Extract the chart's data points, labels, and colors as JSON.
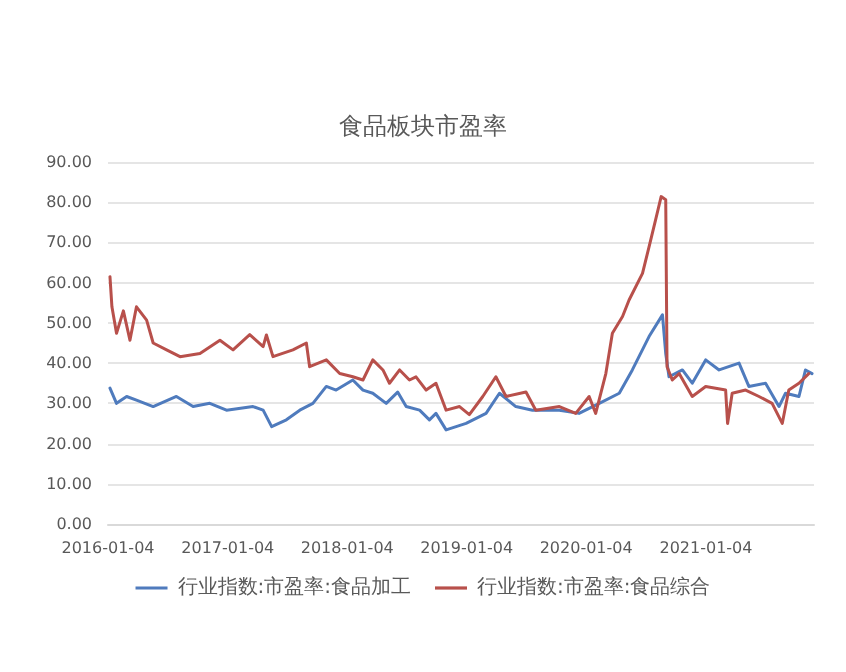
{
  "chart_data": {
    "type": "line",
    "title": "食品板块市盈率",
    "xlim": [
      "2016-01-04",
      "2021-11-30"
    ],
    "xticks": [
      "2016-01-04",
      "2017-01-04",
      "2018-01-04",
      "2019-01-04",
      "2020-01-04",
      "2021-01-04"
    ],
    "ylim": [
      0,
      90
    ],
    "yticks": [
      {
        "value": 0,
        "label": "0.00"
      },
      {
        "value": 10,
        "label": "10.00"
      },
      {
        "value": 20,
        "label": "20.00"
      },
      {
        "value": 30,
        "label": "30.00"
      },
      {
        "value": 40,
        "label": "40.00"
      },
      {
        "value": 50,
        "label": "50.00"
      },
      {
        "value": 60,
        "label": "60.00"
      },
      {
        "value": 70,
        "label": "70.00"
      },
      {
        "value": 80,
        "label": "80.00"
      },
      {
        "value": 90,
        "label": "90.00"
      }
    ],
    "grid": "y",
    "legend": "bottom",
    "marker": "none",
    "line_style": "solid",
    "series": [
      {
        "name": "行业指数:市盈率:食品加工",
        "color": "#4f7bbd",
        "x": [
          "2016-01-10",
          "2016-01-30",
          "2016-03-01",
          "2016-03-31",
          "2016-05-21",
          "2016-07-31",
          "2016-09-20",
          "2016-11-10",
          "2016-12-31",
          "2017-03-22",
          "2017-04-22",
          "2017-05-18",
          "2017-07-02",
          "2017-08-12",
          "2017-09-21",
          "2017-11-01",
          "2017-12-01",
          "2018-01-21",
          "2018-02-21",
          "2018-03-23",
          "2018-05-03",
          "2018-06-07",
          "2018-07-03",
          "2018-08-13",
          "2018-09-12",
          "2018-10-02",
          "2018-11-02",
          "2019-01-02",
          "2019-03-04",
          "2019-04-14",
          "2019-06-03",
          "2019-07-24",
          "2019-10-14",
          "2019-12-13",
          "2020-02-13",
          "2020-04-14",
          "2020-05-24",
          "2020-07-14",
          "2020-08-24",
          "2020-09-03",
          "2020-09-13",
          "2020-10-24",
          "2020-11-23",
          "2021-01-03",
          "2021-02-13",
          "2021-04-15",
          "2021-05-15",
          "2021-07-05",
          "2021-08-15",
          "2021-09-04",
          "2021-10-15",
          "2021-11-04",
          "2021-11-24"
        ],
        "values": [
          33.8,
          30,
          31.7,
          30.8,
          29.2,
          31.7,
          29.2,
          30,
          28.3,
          29.2,
          28.3,
          24.2,
          25.9,
          28.3,
          30,
          34.2,
          33.3,
          35.8,
          33.3,
          32.5,
          30,
          32.8,
          29.2,
          28.3,
          25.9,
          27.5,
          23.4,
          25,
          27.5,
          32.5,
          29.2,
          28.3,
          28.3,
          27.5,
          30,
          32.5,
          38.3,
          46.6,
          52,
          42.4,
          36.6,
          38.3,
          35,
          40.8,
          38.3,
          40,
          34.2,
          35,
          29.2,
          32.5,
          31.7,
          38.3,
          37.4
        ]
      },
      {
        "name": "行业指数:市盈率:食品综合",
        "color": "#b8504b",
        "x": [
          "2016-01-10",
          "2016-01-16",
          "2016-01-30",
          "2016-02-20",
          "2016-03-11",
          "2016-03-31",
          "2016-05-01",
          "2016-05-21",
          "2016-07-01",
          "2016-08-11",
          "2016-10-11",
          "2016-12-11",
          "2017-01-20",
          "2017-03-12",
          "2017-04-22",
          "2017-05-02",
          "2017-05-22",
          "2017-07-22",
          "2017-09-01",
          "2017-09-11",
          "2017-11-01",
          "2017-12-12",
          "2018-01-21",
          "2018-02-21",
          "2018-03-23",
          "2018-04-23",
          "2018-05-13",
          "2018-06-13",
          "2018-07-13",
          "2018-08-02",
          "2018-09-02",
          "2018-10-02",
          "2018-11-02",
          "2018-12-13",
          "2019-01-12",
          "2019-02-22",
          "2019-04-03",
          "2019-05-04",
          "2019-07-04",
          "2019-08-03",
          "2019-10-14",
          "2019-12-03",
          "2020-01-13",
          "2020-02-02",
          "2020-03-04",
          "2020-03-24",
          "2020-04-24",
          "2020-05-14",
          "2020-06-24",
          "2020-07-14",
          "2020-08-03",
          "2020-08-20",
          "2020-09-03",
          "2020-09-07",
          "2020-09-23",
          "2020-10-14",
          "2020-11-23",
          "2021-01-03",
          "2021-03-05",
          "2021-03-11",
          "2021-03-25",
          "2021-05-05",
          "2021-06-15",
          "2021-07-25",
          "2021-08-25",
          "2021-09-14",
          "2021-10-15",
          "2021-11-14"
        ],
        "values": [
          61.5,
          54,
          47.4,
          53,
          45.7,
          54,
          50.7,
          45,
          43.3,
          41.6,
          42.4,
          45.7,
          43.3,
          47.1,
          44.1,
          47,
          41.6,
          43.3,
          45,
          39.1,
          40.8,
          37.4,
          36.6,
          35.8,
          40.8,
          38.3,
          35,
          38.3,
          35.8,
          36.6,
          33.3,
          35,
          28.3,
          29.2,
          27.2,
          31.7,
          36.6,
          31.7,
          32.8,
          28.3,
          29.2,
          27.5,
          31.7,
          27.5,
          37.4,
          47.4,
          51.6,
          55.7,
          62.3,
          68.9,
          75.6,
          81.4,
          80.6,
          39.1,
          35.8,
          37.4,
          31.7,
          34.2,
          33.3,
          25,
          32.5,
          33.3,
          31.7,
          30,
          25,
          33.3,
          35,
          37.4
        ]
      }
    ]
  }
}
